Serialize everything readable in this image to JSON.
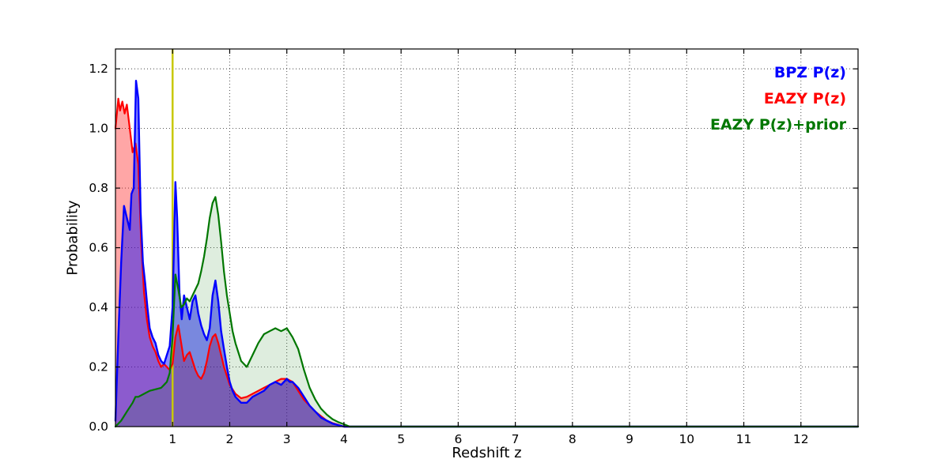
{
  "figure": {
    "background": "#ffffff"
  },
  "chart_data": {
    "type": "line",
    "title": "",
    "xlabel": "Redshift z",
    "ylabel": "Probability",
    "xlim": [
      0,
      13.0
    ],
    "ylim": [
      0,
      1.2666
    ],
    "grid": true,
    "grid_style": "dotted",
    "legend_position": "top-right-inside",
    "xticks": [
      1,
      2,
      3,
      4,
      5,
      6,
      7,
      8,
      9,
      10,
      11,
      12
    ],
    "xticklabels": [
      "1",
      "2",
      "3",
      "4",
      "5",
      "6",
      "7",
      "8",
      "9",
      "10",
      "11",
      "12"
    ],
    "yticks": [
      0.0,
      0.2,
      0.4,
      0.6,
      0.8,
      1.0,
      1.2
    ],
    "yticklabels": [
      "0.0",
      "0.2",
      "0.4",
      "0.6",
      "0.8",
      "1.0",
      "1.2"
    ],
    "vline": {
      "x": 1.0,
      "color": "#c8c800",
      "width": 2.5
    },
    "series": [
      {
        "name": "EAZY P(z)",
        "color": "#ff0000",
        "fill_opacity": 0.35,
        "line_width": 2.2,
        "points": [
          [
            0.0,
            1.0
          ],
          [
            0.05,
            1.1
          ],
          [
            0.08,
            1.06
          ],
          [
            0.12,
            1.09
          ],
          [
            0.16,
            1.05
          ],
          [
            0.2,
            1.08
          ],
          [
            0.25,
            1.0
          ],
          [
            0.3,
            0.92
          ],
          [
            0.35,
            0.95
          ],
          [
            0.4,
            0.88
          ],
          [
            0.45,
            0.62
          ],
          [
            0.5,
            0.45
          ],
          [
            0.55,
            0.36
          ],
          [
            0.6,
            0.3
          ],
          [
            0.65,
            0.27
          ],
          [
            0.7,
            0.25
          ],
          [
            0.75,
            0.22
          ],
          [
            0.8,
            0.2
          ],
          [
            0.85,
            0.21
          ],
          [
            0.9,
            0.2
          ],
          [
            0.95,
            0.19
          ],
          [
            1.0,
            0.21
          ],
          [
            1.05,
            0.3
          ],
          [
            1.1,
            0.34
          ],
          [
            1.15,
            0.28
          ],
          [
            1.2,
            0.22
          ],
          [
            1.25,
            0.24
          ],
          [
            1.3,
            0.25
          ],
          [
            1.35,
            0.22
          ],
          [
            1.4,
            0.19
          ],
          [
            1.45,
            0.17
          ],
          [
            1.5,
            0.16
          ],
          [
            1.55,
            0.18
          ],
          [
            1.6,
            0.22
          ],
          [
            1.65,
            0.27
          ],
          [
            1.7,
            0.3
          ],
          [
            1.75,
            0.31
          ],
          [
            1.8,
            0.28
          ],
          [
            1.85,
            0.24
          ],
          [
            1.9,
            0.2
          ],
          [
            1.95,
            0.17
          ],
          [
            2.0,
            0.14
          ],
          [
            2.1,
            0.11
          ],
          [
            2.2,
            0.095
          ],
          [
            2.3,
            0.1
          ],
          [
            2.4,
            0.11
          ],
          [
            2.5,
            0.12
          ],
          [
            2.6,
            0.13
          ],
          [
            2.7,
            0.14
          ],
          [
            2.8,
            0.15
          ],
          [
            2.9,
            0.16
          ],
          [
            3.0,
            0.16
          ],
          [
            3.1,
            0.15
          ],
          [
            3.2,
            0.12
          ],
          [
            3.3,
            0.09
          ],
          [
            3.4,
            0.07
          ],
          [
            3.5,
            0.05
          ],
          [
            3.6,
            0.035
          ],
          [
            3.7,
            0.02
          ],
          [
            3.8,
            0.012
          ],
          [
            3.9,
            0.006
          ],
          [
            4.0,
            0.0
          ],
          [
            4.5,
            0.0
          ],
          [
            13.0,
            0.0
          ]
        ]
      },
      {
        "name": "BPZ P(z)",
        "color": "#0000ff",
        "fill_opacity": 0.45,
        "line_width": 2.4,
        "points": [
          [
            0.0,
            0.02
          ],
          [
            0.05,
            0.3
          ],
          [
            0.1,
            0.55
          ],
          [
            0.15,
            0.74
          ],
          [
            0.2,
            0.7
          ],
          [
            0.25,
            0.66
          ],
          [
            0.28,
            0.78
          ],
          [
            0.32,
            0.8
          ],
          [
            0.36,
            1.16
          ],
          [
            0.4,
            1.1
          ],
          [
            0.44,
            0.72
          ],
          [
            0.48,
            0.55
          ],
          [
            0.52,
            0.48
          ],
          [
            0.56,
            0.4
          ],
          [
            0.6,
            0.33
          ],
          [
            0.65,
            0.3
          ],
          [
            0.7,
            0.28
          ],
          [
            0.75,
            0.24
          ],
          [
            0.8,
            0.22
          ],
          [
            0.85,
            0.21
          ],
          [
            0.9,
            0.24
          ],
          [
            0.95,
            0.27
          ],
          [
            1.0,
            0.4
          ],
          [
            1.05,
            0.82
          ],
          [
            1.08,
            0.7
          ],
          [
            1.12,
            0.45
          ],
          [
            1.16,
            0.36
          ],
          [
            1.2,
            0.44
          ],
          [
            1.25,
            0.4
          ],
          [
            1.3,
            0.36
          ],
          [
            1.35,
            0.42
          ],
          [
            1.4,
            0.44
          ],
          [
            1.45,
            0.38
          ],
          [
            1.5,
            0.34
          ],
          [
            1.55,
            0.31
          ],
          [
            1.6,
            0.29
          ],
          [
            1.65,
            0.33
          ],
          [
            1.7,
            0.44
          ],
          [
            1.75,
            0.49
          ],
          [
            1.8,
            0.42
          ],
          [
            1.85,
            0.32
          ],
          [
            1.9,
            0.26
          ],
          [
            1.95,
            0.2
          ],
          [
            2.0,
            0.15
          ],
          [
            2.05,
            0.12
          ],
          [
            2.1,
            0.1
          ],
          [
            2.2,
            0.08
          ],
          [
            2.3,
            0.08
          ],
          [
            2.4,
            0.1
          ],
          [
            2.5,
            0.11
          ],
          [
            2.6,
            0.12
          ],
          [
            2.7,
            0.14
          ],
          [
            2.8,
            0.15
          ],
          [
            2.9,
            0.14
          ],
          [
            3.0,
            0.16
          ],
          [
            3.05,
            0.15
          ],
          [
            3.1,
            0.15
          ],
          [
            3.2,
            0.13
          ],
          [
            3.3,
            0.1
          ],
          [
            3.4,
            0.07
          ],
          [
            3.5,
            0.05
          ],
          [
            3.6,
            0.03
          ],
          [
            3.7,
            0.02
          ],
          [
            3.8,
            0.01
          ],
          [
            3.9,
            0.005
          ],
          [
            4.0,
            0.0
          ],
          [
            4.5,
            0.0
          ],
          [
            13.0,
            0.0
          ]
        ]
      },
      {
        "name": "EAZY P(z)+prior",
        "color": "#007700",
        "fill_opacity": 0.13,
        "line_width": 2.2,
        "points": [
          [
            0.0,
            0.0
          ],
          [
            0.1,
            0.02
          ],
          [
            0.2,
            0.05
          ],
          [
            0.3,
            0.08
          ],
          [
            0.35,
            0.1
          ],
          [
            0.4,
            0.1
          ],
          [
            0.5,
            0.11
          ],
          [
            0.6,
            0.12
          ],
          [
            0.7,
            0.125
          ],
          [
            0.8,
            0.13
          ],
          [
            0.85,
            0.14
          ],
          [
            0.9,
            0.15
          ],
          [
            0.95,
            0.18
          ],
          [
            1.0,
            0.3
          ],
          [
            1.05,
            0.51
          ],
          [
            1.1,
            0.46
          ],
          [
            1.15,
            0.4
          ],
          [
            1.2,
            0.41
          ],
          [
            1.25,
            0.43
          ],
          [
            1.3,
            0.42
          ],
          [
            1.35,
            0.44
          ],
          [
            1.4,
            0.46
          ],
          [
            1.45,
            0.48
          ],
          [
            1.5,
            0.52
          ],
          [
            1.55,
            0.57
          ],
          [
            1.6,
            0.63
          ],
          [
            1.65,
            0.7
          ],
          [
            1.7,
            0.75
          ],
          [
            1.75,
            0.77
          ],
          [
            1.8,
            0.71
          ],
          [
            1.85,
            0.62
          ],
          [
            1.9,
            0.52
          ],
          [
            1.95,
            0.44
          ],
          [
            2.0,
            0.38
          ],
          [
            2.05,
            0.32
          ],
          [
            2.1,
            0.28
          ],
          [
            2.2,
            0.22
          ],
          [
            2.3,
            0.2
          ],
          [
            2.4,
            0.24
          ],
          [
            2.5,
            0.28
          ],
          [
            2.6,
            0.31
          ],
          [
            2.7,
            0.32
          ],
          [
            2.8,
            0.33
          ],
          [
            2.9,
            0.32
          ],
          [
            3.0,
            0.33
          ],
          [
            3.1,
            0.3
          ],
          [
            3.2,
            0.26
          ],
          [
            3.3,
            0.19
          ],
          [
            3.4,
            0.13
          ],
          [
            3.5,
            0.09
          ],
          [
            3.6,
            0.06
          ],
          [
            3.7,
            0.04
          ],
          [
            3.8,
            0.025
          ],
          [
            3.9,
            0.015
          ],
          [
            4.0,
            0.008
          ],
          [
            4.1,
            0.0
          ],
          [
            4.5,
            0.0
          ],
          [
            13.0,
            0.0
          ]
        ]
      }
    ],
    "legend": [
      {
        "label": "BPZ P(z)",
        "color": "#0000ff"
      },
      {
        "label": "EAZY P(z)",
        "color": "#ff0000"
      },
      {
        "label": "EAZY P(z)+prior",
        "color": "#007700"
      }
    ]
  }
}
